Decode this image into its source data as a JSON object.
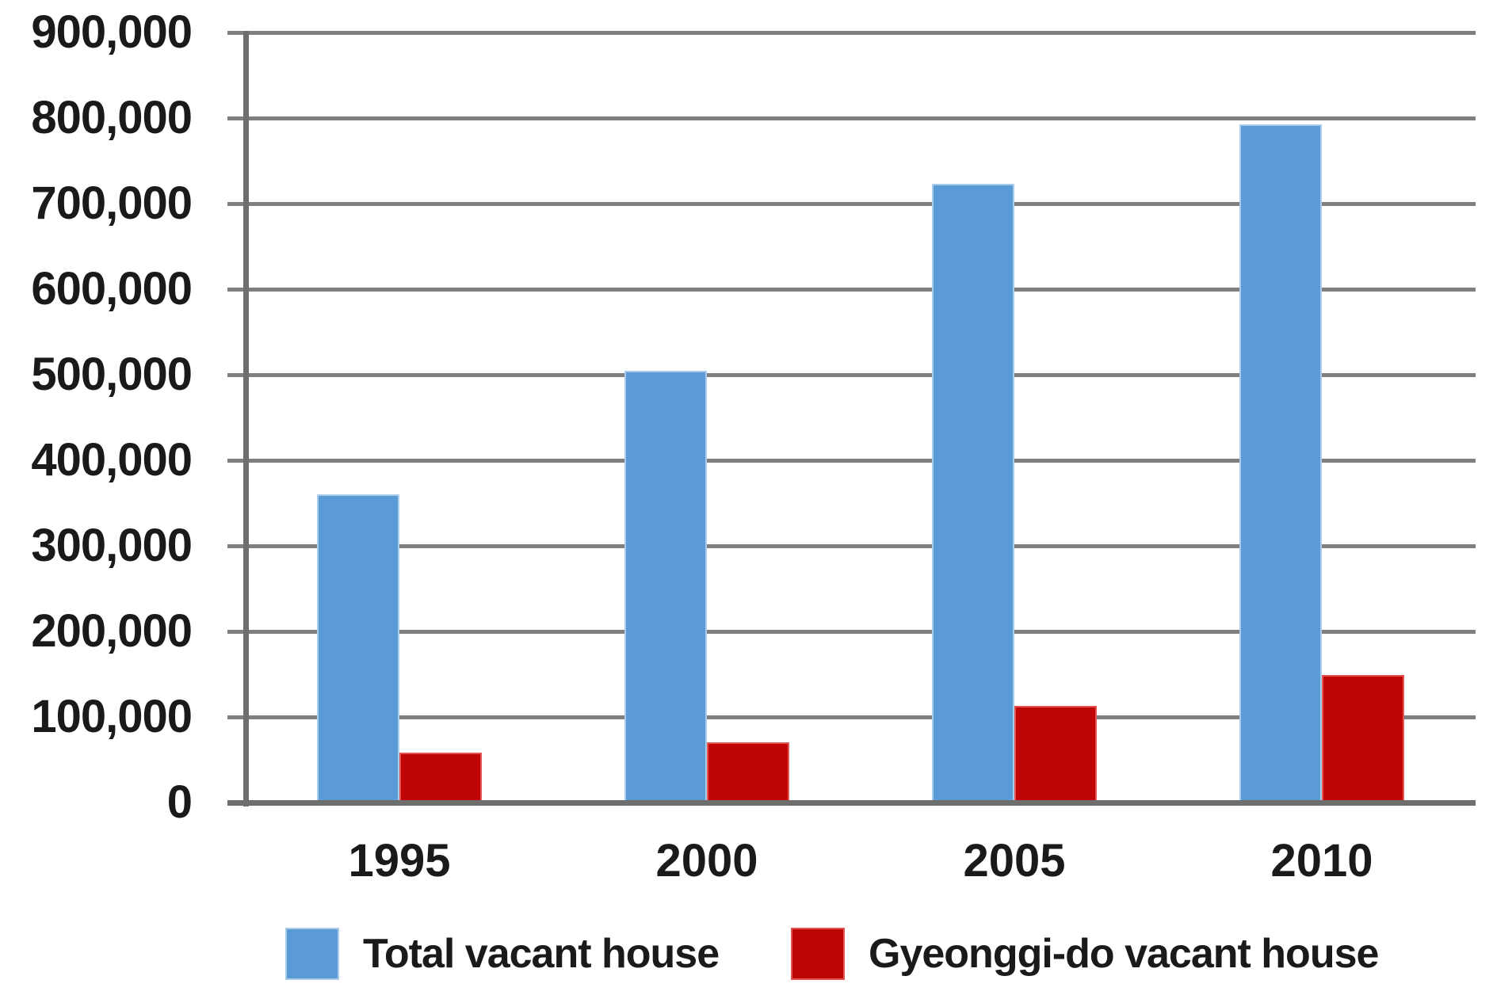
{
  "chart_data": {
    "type": "bar",
    "title": "",
    "categories": [
      "1995",
      "2000",
      "2005",
      "2010"
    ],
    "series": [
      {
        "name": "Total vacant house",
        "color": "#5B9BD5",
        "border_color": "#A9CCEA",
        "values": [
          360000,
          505000,
          723000,
          793000
        ]
      },
      {
        "name": "Gyeonggi-do vacant house",
        "color": "#C00505",
        "border_color": "#E25553",
        "values": [
          58000,
          70000,
          113000,
          149000
        ]
      }
    ],
    "xlabel": "",
    "ylabel": "",
    "ylim": [
      0,
      900000
    ],
    "y_tick_step": 100000,
    "y_tick_labels": [
      "0",
      "100,000",
      "200,000",
      "300,000",
      "400,000",
      "500,000",
      "600,000",
      "700,000",
      "800,000",
      "900,000"
    ],
    "grid": true,
    "gridline_color": "#7F7F7F",
    "axis_color": "#6E6E6E",
    "text_color": "#1A1A1A",
    "background_color": "#FFFFFF",
    "legend_position": "bottom"
  }
}
